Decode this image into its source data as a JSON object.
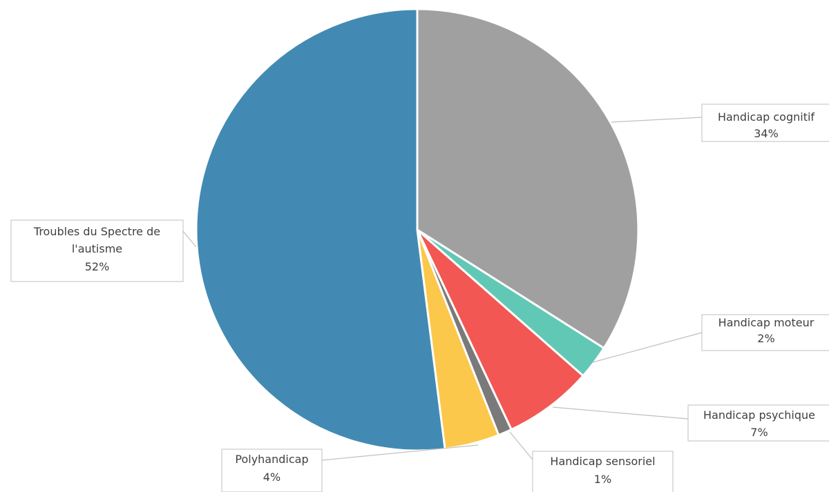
{
  "chart_data": {
    "type": "pie",
    "title": "",
    "slices": [
      {
        "label": "Handicap cognitif",
        "value": 34,
        "pct_label": "34%",
        "color": "#A0A0A0"
      },
      {
        "label": "Handicap moteur",
        "value": 2.5,
        "pct_label": "2%",
        "color": "#62C8B6"
      },
      {
        "label": "Handicap psychique",
        "value": 6.5,
        "pct_label": "7%",
        "color": "#F35753"
      },
      {
        "label": "Handicap sensoriel",
        "value": 1,
        "pct_label": "1%",
        "color": "#7A7A7A"
      },
      {
        "label": "Polyhandicap",
        "value": 4,
        "pct_label": "4%",
        "color": "#FCC84B"
      },
      {
        "label": "Troubles du Spectre de l'autisme",
        "value": 52,
        "pct_label": "52%",
        "color": "#428AB3",
        "label_lines": [
          "Troubles du Spectre de",
          "l'autisme"
        ]
      }
    ],
    "legend": "none",
    "data_labels": "outside with leader lines"
  }
}
